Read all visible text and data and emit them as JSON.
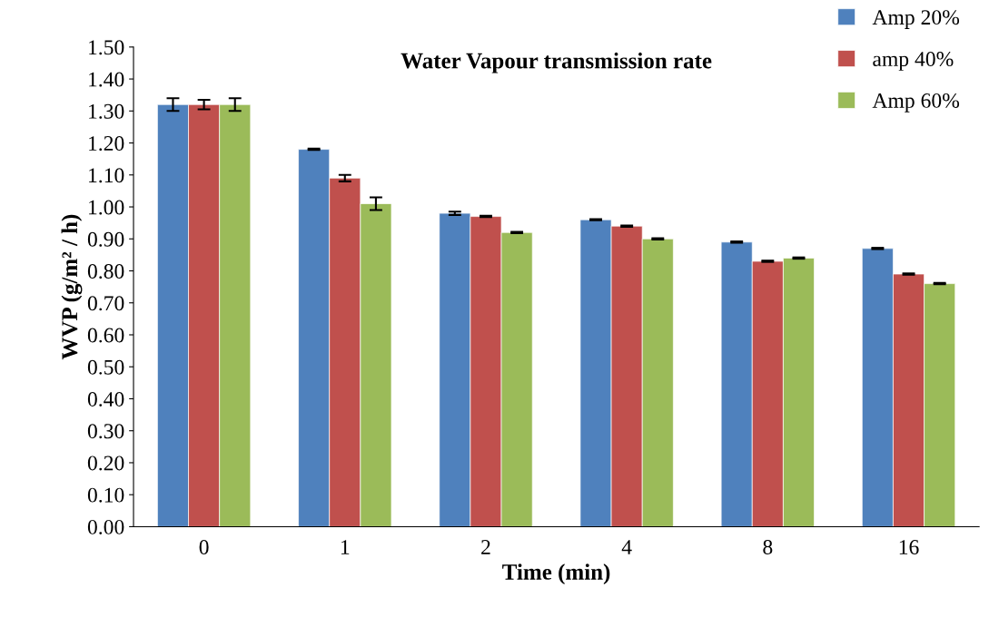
{
  "chart_data": {
    "type": "bar",
    "title": "Water Vapour transmission rate",
    "xlabel": "Time (min)",
    "ylabel": "WVP (g/m² / h)",
    "categories": [
      "0",
      "1",
      "2",
      "4",
      "8",
      "16"
    ],
    "series": [
      {
        "name": "Amp 20%",
        "color": "#4f81bd",
        "values": [
          1.32,
          1.18,
          0.98,
          0.96,
          0.89,
          0.87
        ],
        "errors": [
          0.02,
          0.002,
          0.005,
          0.002,
          0.002,
          0.002
        ]
      },
      {
        "name": "amp 40%",
        "color": "#c0504d",
        "values": [
          1.32,
          1.09,
          0.97,
          0.94,
          0.83,
          0.79
        ],
        "errors": [
          0.015,
          0.01,
          0.002,
          0.002,
          0.002,
          0.002
        ]
      },
      {
        "name": "Amp 60%",
        "color": "#9bbb59",
        "values": [
          1.32,
          1.01,
          0.92,
          0.9,
          0.84,
          0.76
        ],
        "errors": [
          0.02,
          0.02,
          0.002,
          0.002,
          0.002,
          0.002
        ]
      }
    ],
    "ylim": [
      0,
      1.5
    ],
    "yticks": [
      {
        "value": 0,
        "label": "0.00"
      },
      {
        "value": 0.1,
        "label": "0.10"
      },
      {
        "value": 0.2,
        "label": "0.20"
      },
      {
        "value": 0.3,
        "label": "0.30"
      },
      {
        "value": 0.4,
        "label": "0.40"
      },
      {
        "value": 0.5,
        "label": "0.50"
      },
      {
        "value": 0.6,
        "label": "0.60"
      },
      {
        "value": 0.7,
        "label": "0.70"
      },
      {
        "value": 0.8,
        "label": "0.80"
      },
      {
        "value": 0.9,
        "label": "0.90"
      },
      {
        "value": 1.0,
        "label": "1.00"
      },
      {
        "value": 1.1,
        "label": "1.10"
      },
      {
        "value": 1.2,
        "label": "1.20"
      },
      {
        "value": 1.3,
        "label": "1.30"
      },
      {
        "value": 1.4,
        "label": "1.40"
      },
      {
        "value": 1.5,
        "label": "1.50"
      }
    ],
    "grid": false,
    "legend": "top right"
  }
}
